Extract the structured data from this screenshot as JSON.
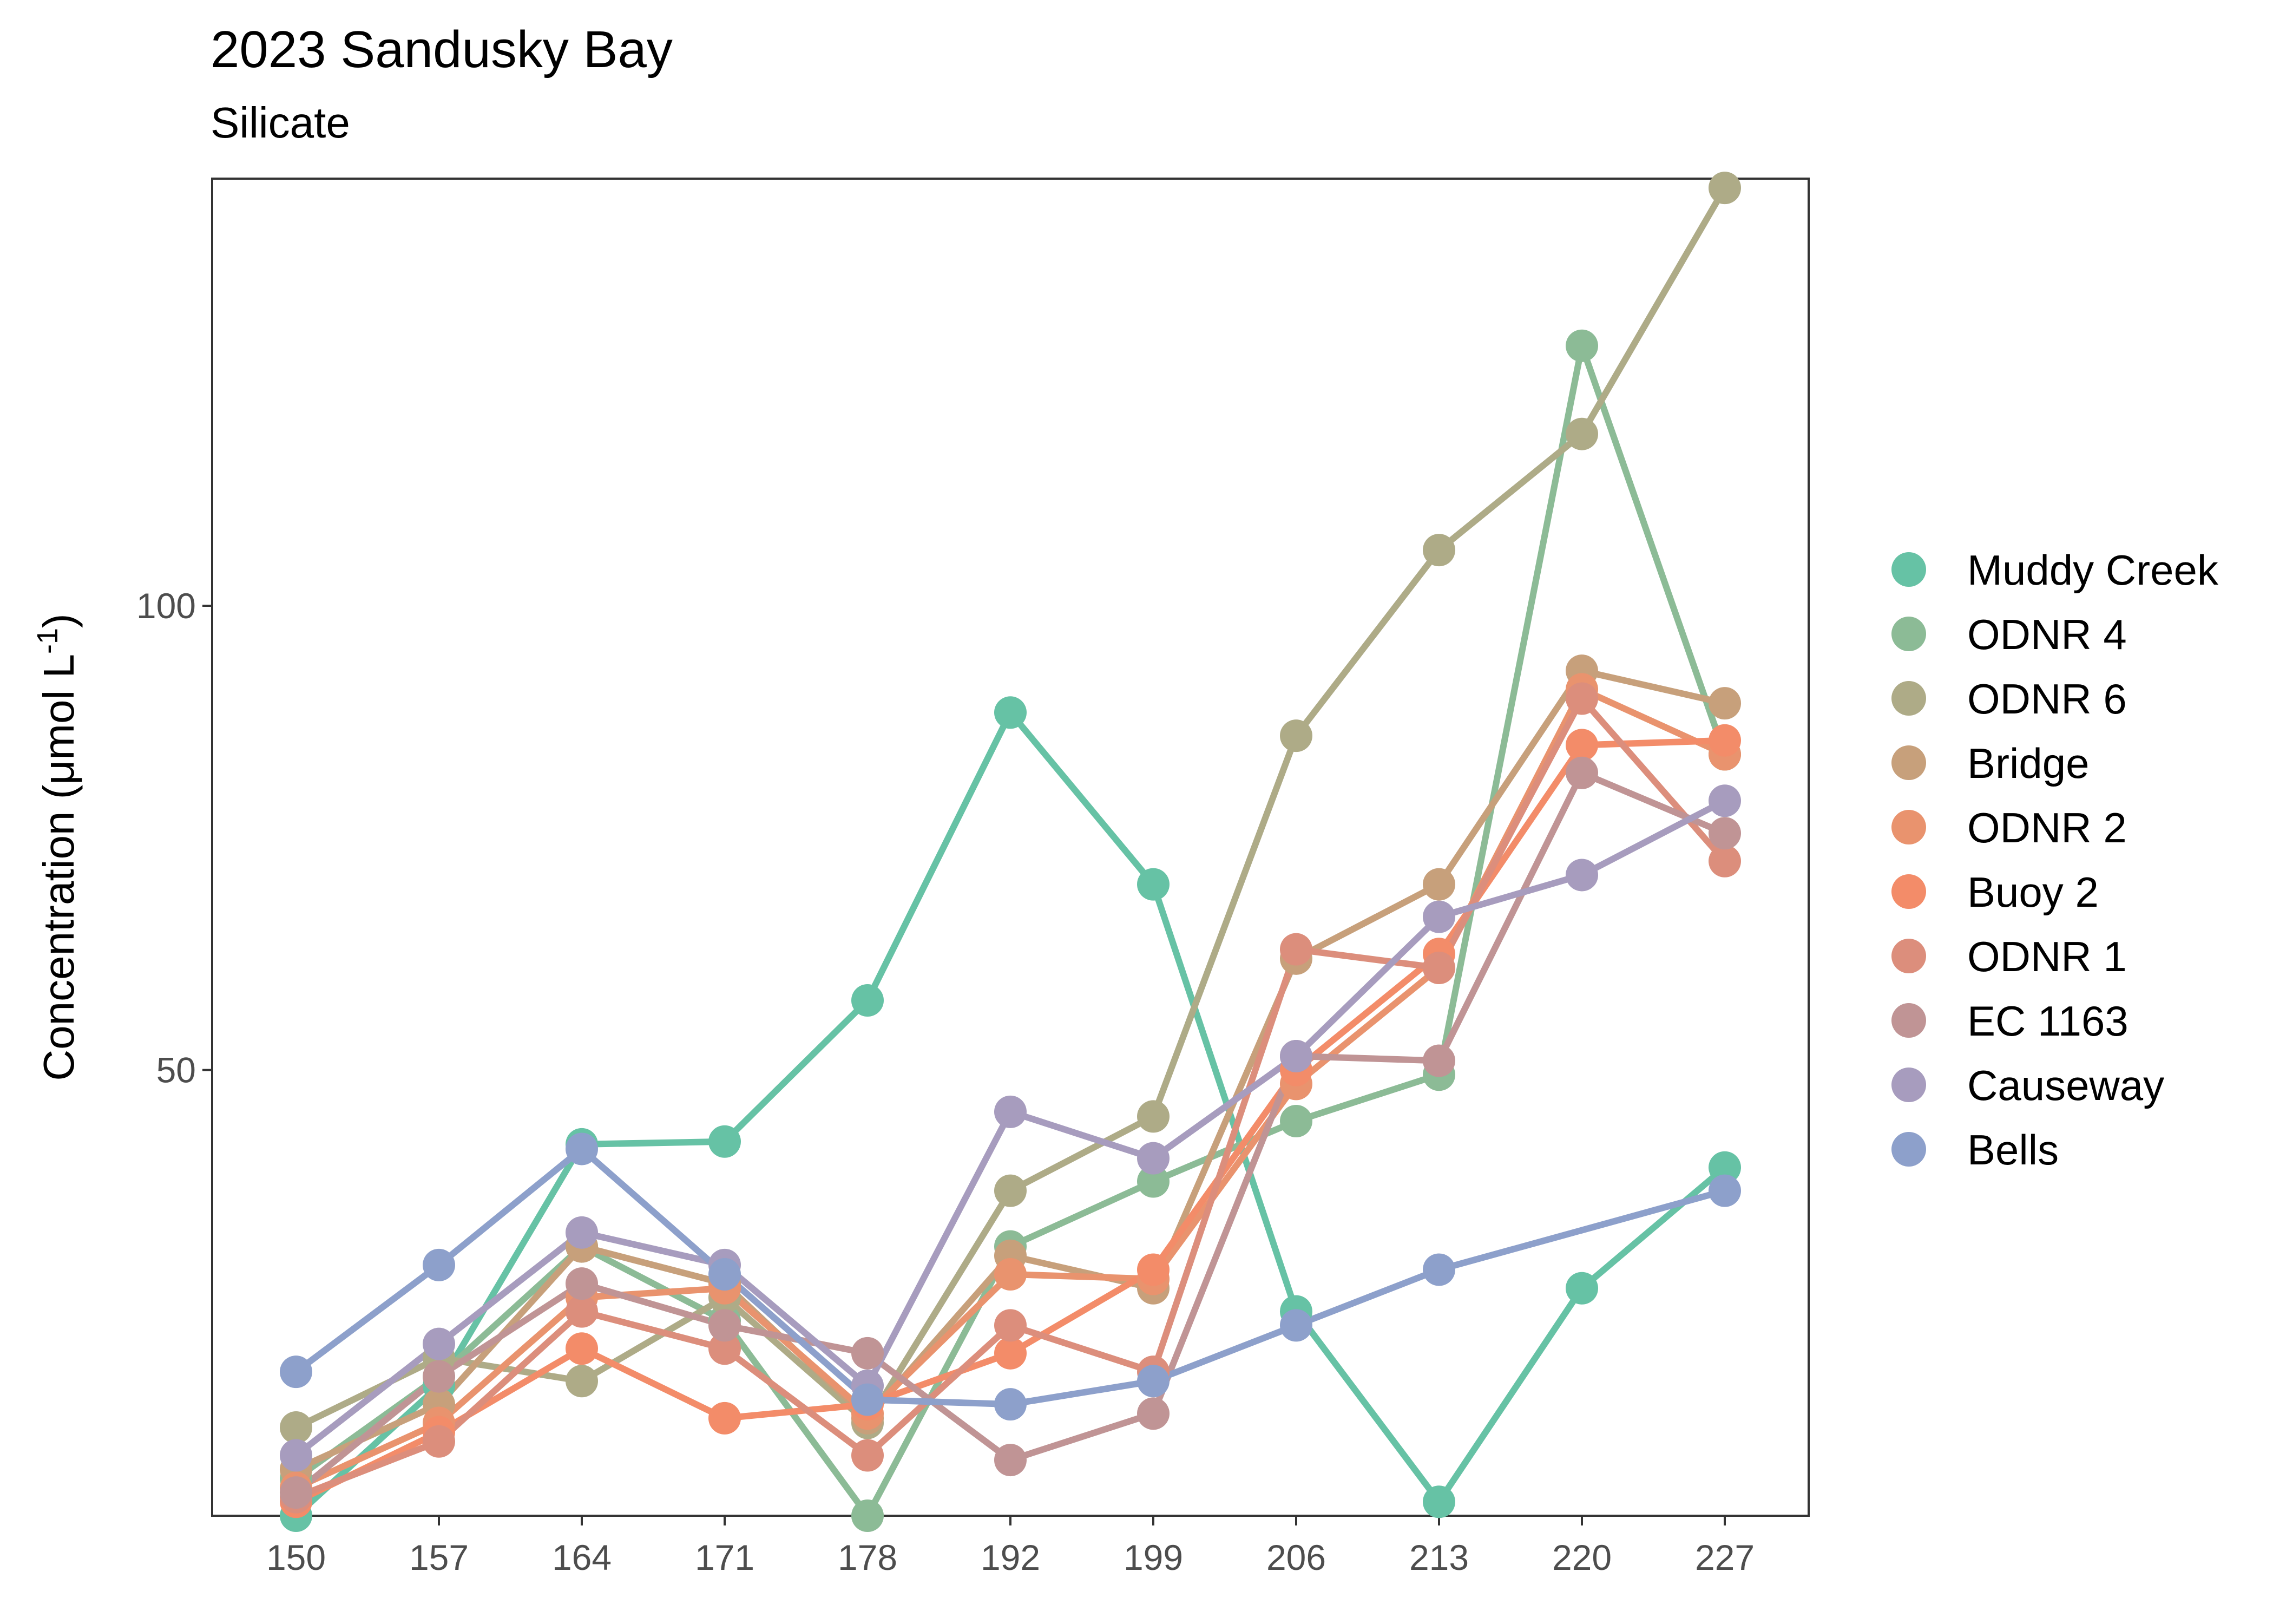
{
  "chart_data": {
    "type": "line",
    "title": "2023 Sandusky Bay",
    "subtitle": "Silicate",
    "ylabel_main": "Concentration (μmol L",
    "ylabel_sup": "-1",
    "ylabel_end": ")",
    "xlabel": "",
    "x": [
      150,
      157,
      164,
      171,
      178,
      192,
      199,
      206,
      213,
      220,
      227
    ],
    "x_ticks": [
      "150",
      "157",
      "164",
      "171",
      "178",
      "192",
      "199",
      "206",
      "213",
      "220",
      "227"
    ],
    "y_ticks": [
      50,
      100
    ],
    "y_tick_labels": [
      "50",
      "100"
    ],
    "ylim": [
      2,
      146
    ],
    "grid": false,
    "legend_position": "right",
    "series": [
      {
        "name": "Muddy Creek",
        "color": "#66C2A5",
        "values": [
          2,
          16,
          42,
          42.3,
          57.5,
          88.5,
          70,
          24,
          3.5,
          26.5,
          39.5
        ]
      },
      {
        "name": "ODNR 4",
        "color": "#8CBB96",
        "values": [
          6,
          17,
          31,
          23,
          2,
          31,
          38,
          44.5,
          49.5,
          128,
          84
        ]
      },
      {
        "name": "ODNR 6",
        "color": "#AEAB87",
        "values": [
          11.5,
          19,
          16.5,
          25.5,
          12,
          37,
          45,
          86,
          106,
          118.5,
          145
        ]
      },
      {
        "name": "Bridge",
        "color": "#C7A07B",
        "values": [
          7,
          14,
          31,
          27,
          12.5,
          30,
          26.5,
          62,
          70,
          93,
          89.5
        ]
      },
      {
        "name": "ODNR 2",
        "color": "#E9936E",
        "values": [
          5,
          12,
          25.5,
          26.5,
          13,
          28,
          27.5,
          48.5,
          61,
          91,
          84
        ]
      },
      {
        "name": "Buoy 2",
        "color": "#F38C69",
        "values": [
          3.5,
          11,
          20,
          12.5,
          14,
          19.5,
          28.5,
          50,
          62.5,
          85,
          85.5
        ]
      },
      {
        "name": "ODNR 1",
        "color": "#DC8E7C",
        "values": [
          4,
          10,
          24,
          20,
          8.5,
          22.5,
          17.5,
          63,
          61,
          90,
          72.5
        ]
      },
      {
        "name": "EC 1163",
        "color": "#C09495",
        "values": [
          4.5,
          17,
          27,
          22.5,
          19.5,
          8,
          13,
          51.5,
          51,
          82,
          75.5
        ]
      },
      {
        "name": "Causeway",
        "color": "#A79CBE",
        "values": [
          8.5,
          20.5,
          32.5,
          29,
          16,
          45.5,
          40.5,
          51.5,
          66.5,
          71,
          79
        ]
      },
      {
        "name": "Bells",
        "color": "#8DA0CB",
        "values": [
          17.5,
          29,
          41.5,
          28,
          14.5,
          14,
          16.5,
          22.5,
          28.5,
          null,
          37
        ]
      }
    ]
  }
}
